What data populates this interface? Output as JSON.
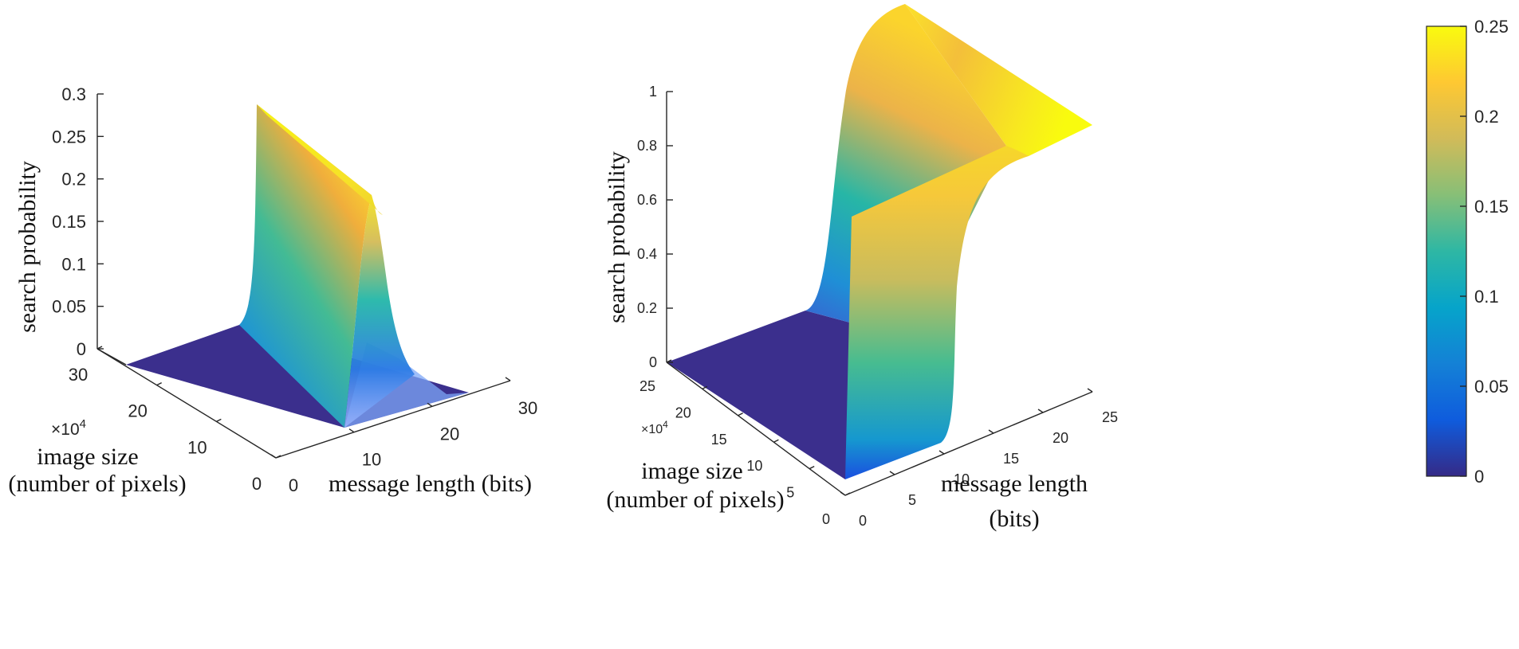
{
  "chart_data": [
    {
      "type": "surface",
      "panel": "left",
      "zlabel": "search probability",
      "xlabel": "message length (bits)",
      "ylabel_line1": "image  size",
      "ylabel_line2": "(number of pixels)",
      "y_exponent_base": "×10",
      "y_exponent_power": "4",
      "z_ticks": [
        "0",
        "0.05",
        "0.1",
        "0.15",
        "0.2",
        "0.25",
        "0.3"
      ],
      "x_ticks": [
        "0",
        "10",
        "20",
        "30"
      ],
      "y_ticks": [
        "0",
        "10",
        "20",
        "30"
      ],
      "zlim": [
        0,
        0.3
      ],
      "xlim": [
        0,
        30
      ],
      "ylim": [
        0,
        30
      ],
      "peak_value": 0.28,
      "ridge_message_length": 12
    },
    {
      "type": "surface",
      "panel": "right",
      "zlabel": "search probability",
      "xlabel_line1": "message length",
      "xlabel_line2": "(bits)",
      "ylabel_line1": "image  size",
      "ylabel_line2": "(number of pixels)",
      "y_exponent_base": "×10",
      "y_exponent_power": "4",
      "z_ticks": [
        "0",
        "0.2",
        "0.4",
        "0.6",
        "0.8",
        "1"
      ],
      "x_ticks": [
        "0",
        "5",
        "10",
        "15",
        "20",
        "25"
      ],
      "y_ticks": [
        "0",
        "5",
        "10",
        "15",
        "20",
        "25"
      ],
      "zlim": [
        0,
        1
      ],
      "xlim": [
        0,
        25
      ],
      "ylim": [
        0,
        25
      ],
      "plateau_value": 1,
      "step_message_length": 9
    }
  ],
  "colorbar": {
    "ticks": [
      "0",
      "0.05",
      "0.1",
      "0.15",
      "0.2",
      "0.25"
    ],
    "min": 0,
    "max": 0.25,
    "colormap": "parula",
    "color_stops": [
      "#352a87",
      "#0f5cdd",
      "#1481d6",
      "#06a4ca",
      "#2eb7a4",
      "#87bf77",
      "#d1bb59",
      "#fec832",
      "#f9fb0e"
    ]
  }
}
